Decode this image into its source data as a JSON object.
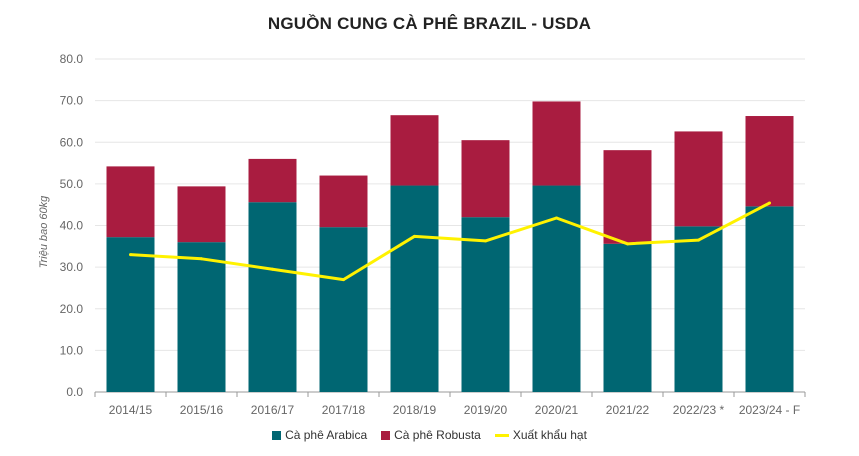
{
  "colors": {
    "arabica": "#006672",
    "robusta": "#A91C40",
    "export": "#FFF200",
    "grid": "#e6e6e6",
    "axis_text": "#666666"
  },
  "chart_data": {
    "type": "bar",
    "stacked": true,
    "title": "NGUỒN CUNG CÀ PHÊ BRAZIL - USDA",
    "ylabel": "Triệu bao 60kg",
    "xlabel": "",
    "ylim": [
      0,
      80
    ],
    "yticks": [
      "0.0",
      "10.0",
      "20.0",
      "30.0",
      "40.0",
      "50.0",
      "60.0",
      "70.0",
      "80.0"
    ],
    "grid": true,
    "legend_position": "bottom",
    "categories": [
      "2014/15",
      "2015/16",
      "2016/17",
      "2017/18",
      "2018/19",
      "2019/20",
      "2020/21",
      "2021/22",
      "2022/23 *",
      "2023/24 - F"
    ],
    "series": [
      {
        "name": "Cà phê Arabica",
        "kind": "bar",
        "values": [
          37.2,
          36.0,
          45.6,
          39.6,
          49.6,
          42.0,
          49.6,
          35.6,
          39.8,
          44.6
        ]
      },
      {
        "name": "Cà phê Robusta",
        "kind": "bar",
        "values": [
          17.0,
          13.4,
          10.4,
          12.4,
          16.9,
          18.5,
          20.2,
          22.5,
          22.8,
          21.7
        ]
      },
      {
        "name": "Xuất khẩu hạt",
        "kind": "line",
        "values": [
          33.0,
          32.0,
          29.5,
          27.0,
          37.4,
          36.3,
          41.8,
          35.6,
          36.5,
          45.4
        ]
      }
    ]
  }
}
